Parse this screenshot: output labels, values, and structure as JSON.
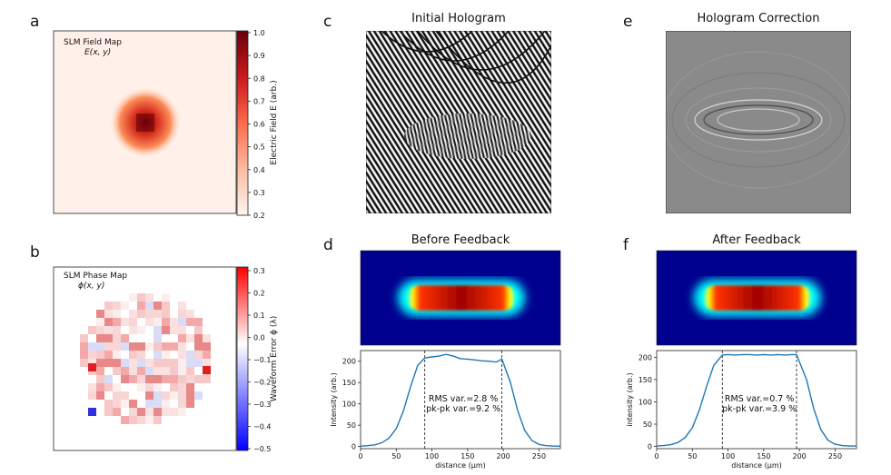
{
  "panels": {
    "a": {
      "letter": "a",
      "label_line1": "SLM Field Map",
      "label_line2": "E(x, y)",
      "colorbar_label": "Electric Field E (arb.)",
      "colorbar_ticks": [
        "1.0",
        "0.9",
        "0.8",
        "0.7",
        "0.6",
        "0.5",
        "0.4",
        "0.3",
        "0.2"
      ]
    },
    "b": {
      "letter": "b",
      "label_line1": "SLM Phase Map",
      "label_line2": "ϕ(x, y)",
      "colorbar_label": "Waveform Error ϕ (λ)",
      "colorbar_ticks": [
        "0.3",
        "0.2",
        "0.1",
        "0.0",
        "−0.1",
        "−0.2",
        "−0.3",
        "−0.4",
        "−0.5"
      ]
    },
    "c": {
      "letter": "c",
      "title": "Initial Hologram"
    },
    "d": {
      "letter": "d",
      "title": "Before Feedback"
    },
    "e": {
      "letter": "e",
      "title": "Hologram Correction"
    },
    "f": {
      "letter": "f",
      "title": "After Feedback"
    }
  },
  "colors": {
    "red_dark": "#8b0000",
    "blue": "#1f77b4",
    "jet_bg": "#00008f"
  },
  "chart_data": [
    {
      "id": "before-feedback-profile",
      "type": "line",
      "xlabel": "distance (μm)",
      "ylabel": "Intensity (arb.)",
      "xlim": [
        0,
        280
      ],
      "ylim": [
        -5,
        225
      ],
      "xticks": [
        0,
        50,
        100,
        150,
        200,
        250
      ],
      "yticks": [
        0,
        50,
        100,
        150,
        200
      ],
      "vlines": [
        90,
        198
      ],
      "annotation": [
        "RMS var.=2.8 %",
        "pk-pk var.=9.2 %"
      ],
      "series": [
        {
          "name": "profile",
          "x": [
            0,
            10,
            20,
            30,
            40,
            50,
            60,
            70,
            80,
            90,
            100,
            110,
            120,
            130,
            140,
            150,
            160,
            170,
            180,
            190,
            198,
            210,
            220,
            230,
            240,
            250,
            260,
            270,
            280
          ],
          "y": [
            1,
            2,
            4,
            9,
            20,
            42,
            83,
            140,
            190,
            208,
            210,
            212,
            216,
            212,
            206,
            205,
            203,
            201,
            200,
            198,
            205,
            150,
            85,
            38,
            14,
            5,
            2,
            1,
            1
          ]
        }
      ]
    },
    {
      "id": "after-feedback-profile",
      "type": "line",
      "xlabel": "distance (μm)",
      "ylabel": "intensity (arb.)",
      "xlim": [
        0,
        280
      ],
      "ylim": [
        -5,
        215
      ],
      "xticks": [
        0,
        50,
        100,
        150,
        200,
        250
      ],
      "yticks": [
        0,
        50,
        100,
        150,
        200
      ],
      "vlines": [
        92,
        196
      ],
      "annotation": [
        "RMS var.=0.7 %",
        "pk-pk var.=3.9 %"
      ],
      "series": [
        {
          "name": "profile",
          "x": [
            0,
            10,
            20,
            30,
            40,
            50,
            60,
            70,
            80,
            92,
            100,
            110,
            120,
            130,
            140,
            150,
            160,
            170,
            180,
            190,
            196,
            210,
            220,
            230,
            240,
            250,
            260,
            270,
            280
          ],
          "y": [
            1,
            2,
            4,
            9,
            20,
            42,
            82,
            135,
            182,
            205,
            206,
            205,
            206,
            206,
            205,
            206,
            205,
            206,
            205,
            206,
            206,
            150,
            85,
            38,
            14,
            5,
            2,
            1,
            1
          ]
        }
      ]
    }
  ]
}
